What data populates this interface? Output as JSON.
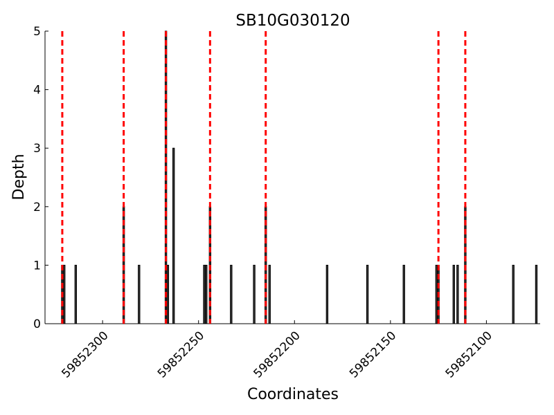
{
  "chart_data": {
    "type": "bar",
    "title": "SB10G030120",
    "xlabel": "Coordinates",
    "ylabel": "Depth",
    "x_reversed": true,
    "xlim": [
      59852330,
      59852072
    ],
    "ylim": [
      0,
      5
    ],
    "y_ticks": [
      0,
      1,
      2,
      3,
      4,
      5
    ],
    "x_ticks": [
      59852300,
      59852250,
      59852200,
      59852150,
      59852100
    ],
    "grid": false,
    "legend": "none",
    "bars": [
      {
        "x": 59852321,
        "depth": 1
      },
      {
        "x": 59852320,
        "depth": 1
      },
      {
        "x": 59852314,
        "depth": 1
      },
      {
        "x": 59852289,
        "depth": 2
      },
      {
        "x": 59852281,
        "depth": 1
      },
      {
        "x": 59852267,
        "depth": 5
      },
      {
        "x": 59852266,
        "depth": 1
      },
      {
        "x": 59852263,
        "depth": 3
      },
      {
        "x": 59852247,
        "depth": 1
      },
      {
        "x": 59852246,
        "depth": 1
      },
      {
        "x": 59852244,
        "depth": 2
      },
      {
        "x": 59852233,
        "depth": 1
      },
      {
        "x": 59852221,
        "depth": 1
      },
      {
        "x": 59852215,
        "depth": 2
      },
      {
        "x": 59852213,
        "depth": 1
      },
      {
        "x": 59852183,
        "depth": 1
      },
      {
        "x": 59852162,
        "depth": 1
      },
      {
        "x": 59852143,
        "depth": 1
      },
      {
        "x": 59852126,
        "depth": 1
      },
      {
        "x": 59852125,
        "depth": 1
      },
      {
        "x": 59852117,
        "depth": 1
      },
      {
        "x": 59852115,
        "depth": 1
      },
      {
        "x": 59852111,
        "depth": 2
      },
      {
        "x": 59852086,
        "depth": 1
      },
      {
        "x": 59852074,
        "depth": 1
      }
    ],
    "reference_lines": [
      59852321,
      59852289,
      59852267,
      59852244,
      59852215,
      59852125,
      59852111
    ],
    "colors": {
      "bar_fill": "#3a3a3a",
      "bar_edge": "#000000",
      "reference_line": "#ff0000"
    }
  }
}
